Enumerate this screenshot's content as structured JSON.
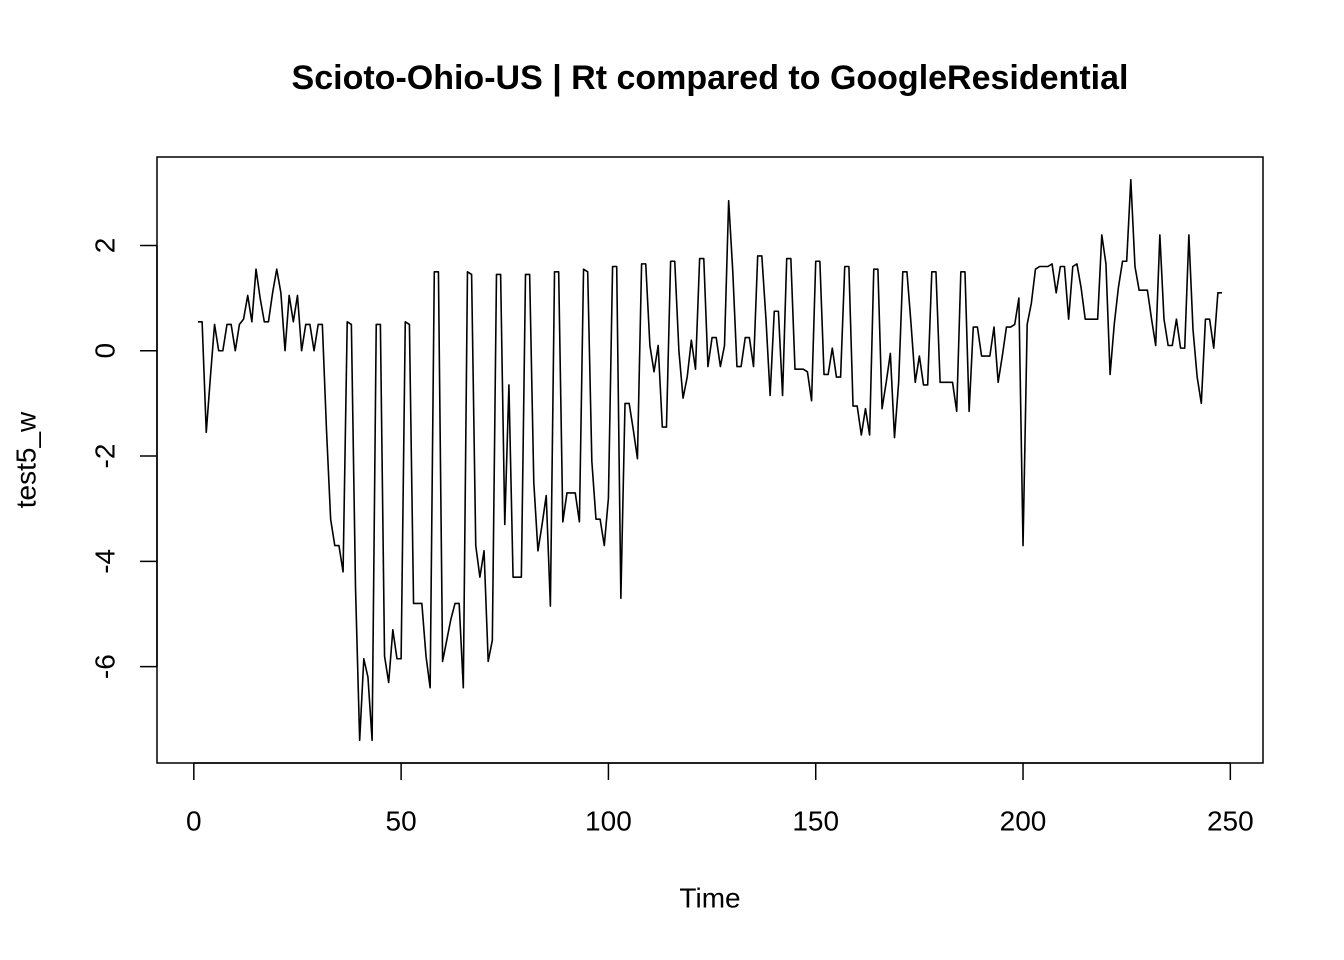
{
  "chart_data": {
    "type": "line",
    "title": "Scioto-Ohio-US | Rt compared to GoogleResidential",
    "xlabel": "Time",
    "ylabel": "test5_w",
    "color": "#000000",
    "grid": false,
    "x": [
      1,
      2,
      3,
      4,
      5,
      6,
      7,
      8,
      9,
      10,
      11,
      12,
      13,
      14,
      15,
      16,
      17,
      18,
      19,
      20,
      21,
      22,
      23,
      24,
      25,
      26,
      27,
      28,
      29,
      30,
      31,
      32,
      33,
      34,
      35,
      36,
      37,
      38,
      39,
      40,
      41,
      42,
      43,
      44,
      45,
      46,
      47,
      48,
      49,
      50,
      51,
      52,
      53,
      54,
      55,
      56,
      57,
      58,
      59,
      60,
      61,
      62,
      63,
      64,
      65,
      66,
      67,
      68,
      69,
      70,
      71,
      72,
      73,
      74,
      75,
      76,
      77,
      78,
      79,
      80,
      81,
      82,
      83,
      84,
      85,
      86,
      87,
      88,
      89,
      90,
      91,
      92,
      93,
      94,
      95,
      96,
      97,
      98,
      99,
      100,
      101,
      102,
      103,
      104,
      105,
      106,
      107,
      108,
      109,
      110,
      111,
      112,
      113,
      114,
      115,
      116,
      117,
      118,
      119,
      120,
      121,
      122,
      123,
      124,
      125,
      126,
      127,
      128,
      129,
      130,
      131,
      132,
      133,
      134,
      135,
      136,
      137,
      138,
      139,
      140,
      141,
      142,
      143,
      144,
      145,
      146,
      147,
      148,
      149,
      150,
      151,
      152,
      153,
      154,
      155,
      156,
      157,
      158,
      159,
      160,
      161,
      162,
      163,
      164,
      165,
      166,
      167,
      168,
      169,
      170,
      171,
      172,
      173,
      174,
      175,
      176,
      177,
      178,
      179,
      180,
      181,
      182,
      183,
      184,
      185,
      186,
      187,
      188,
      189,
      190,
      191,
      192,
      193,
      194,
      195,
      196,
      197,
      198,
      199,
      200,
      201,
      202,
      203,
      204,
      205,
      206,
      207,
      208,
      209,
      210,
      211,
      212,
      213,
      214,
      215,
      216,
      217,
      218,
      219,
      220,
      221,
      222,
      223,
      224,
      225,
      226,
      227,
      228,
      229,
      230,
      231,
      232,
      233,
      234,
      235,
      236,
      237,
      238,
      239,
      240,
      241,
      242,
      243,
      244,
      245,
      246,
      247,
      248
    ],
    "values": [
      0.55,
      0.55,
      -1.55,
      -0.5,
      0.5,
      0,
      0,
      0.5,
      0.5,
      0,
      0.5,
      0.6,
      1.05,
      0.55,
      1.55,
      1.0,
      0.55,
      0.55,
      1.1,
      1.55,
      1.1,
      0,
      1.05,
      0.55,
      1.05,
      0,
      0.5,
      0.5,
      0,
      0.5,
      0.5,
      -1.5,
      -3.2,
      -3.7,
      -3.7,
      -4.2,
      0.55,
      0.5,
      -4.5,
      -7.4,
      -5.85,
      -6.2,
      -7.4,
      0.5,
      0.5,
      -5.8,
      -6.3,
      -5.3,
      -5.85,
      -5.85,
      0.55,
      0.5,
      -4.8,
      -4.8,
      -4.8,
      -5.8,
      -6.4,
      1.5,
      1.5,
      -5.9,
      -5.5,
      -5.1,
      -4.8,
      -4.8,
      -6.4,
      1.5,
      1.45,
      -3.7,
      -4.3,
      -3.8,
      -5.9,
      -5.5,
      1.45,
      1.45,
      -3.3,
      -0.65,
      -4.3,
      -4.3,
      -4.3,
      1.45,
      1.45,
      -2.5,
      -3.8,
      -3.3,
      -2.75,
      -4.85,
      1.5,
      1.5,
      -3.25,
      -2.7,
      -2.7,
      -2.7,
      -3.25,
      1.55,
      1.5,
      -2.1,
      -3.2,
      -3.2,
      -3.7,
      -2.8,
      1.6,
      1.6,
      -4.7,
      -1.0,
      -1.0,
      -1.5,
      -2.05,
      1.65,
      1.65,
      0.1,
      -0.4,
      0.1,
      -1.45,
      -1.45,
      1.7,
      1.7,
      0,
      -0.9,
      -0.5,
      0.2,
      -0.35,
      1.75,
      1.75,
      -0.3,
      0.25,
      0.25,
      -0.3,
      0.1,
      2.85,
      1.5,
      -0.3,
      -0.3,
      0.25,
      0.25,
      -0.3,
      1.8,
      1.8,
      0.6,
      -0.85,
      0.75,
      0.75,
      -0.85,
      1.75,
      1.75,
      -0.35,
      -0.35,
      -0.35,
      -0.4,
      -0.95,
      1.7,
      1.7,
      -0.45,
      -0.45,
      0.05,
      -0.5,
      -0.5,
      1.6,
      1.6,
      -1.05,
      -1.05,
      -1.6,
      -1.1,
      -1.6,
      1.55,
      1.55,
      -1.1,
      -0.6,
      -0.05,
      -1.65,
      -0.6,
      1.5,
      1.5,
      0.5,
      -0.6,
      -0.1,
      -0.65,
      -0.65,
      1.5,
      1.5,
      -0.6,
      -0.6,
      -0.6,
      -0.6,
      -1.15,
      1.5,
      1.5,
      -1.15,
      0.45,
      0.45,
      -0.1,
      -0.1,
      -0.1,
      0.45,
      -0.6,
      -0.1,
      0.45,
      0.45,
      0.5,
      1.0,
      -3.7,
      0.5,
      0.9,
      1.55,
      1.6,
      1.6,
      1.6,
      1.65,
      1.1,
      1.6,
      1.6,
      0.6,
      1.6,
      1.65,
      1.2,
      0.6,
      0.6,
      0.6,
      0.6,
      2.2,
      1.65,
      -0.45,
      0.5,
      1.2,
      1.7,
      1.7,
      3.25,
      1.6,
      1.15,
      1.15,
      1.15,
      0.6,
      0.1,
      2.2,
      0.6,
      0.1,
      0.1,
      0.6,
      0.05,
      0.05,
      2.2,
      0.4,
      -0.5,
      -1.0,
      0.6,
      0.6,
      0.05,
      1.1,
      1.1
    ],
    "xlim": [
      -8.88,
      257.88
    ],
    "xticks": [
      0,
      50,
      100,
      150,
      200,
      250
    ],
    "ylim": [
      -7.83,
      3.68
    ],
    "yticks": [
      -6,
      -4,
      -2,
      0,
      2
    ]
  }
}
